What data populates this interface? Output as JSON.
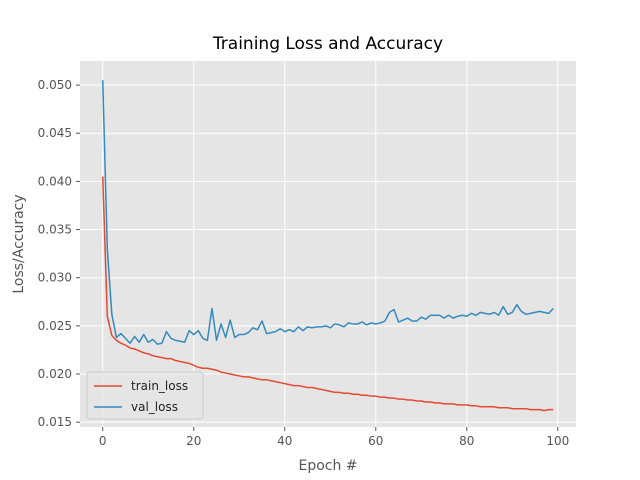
{
  "chart_data": {
    "type": "line",
    "title": "Training Loss and Accuracy",
    "xlabel": "Epoch #",
    "ylabel": "Loss/Accuracy",
    "xlim": [
      -5,
      104
    ],
    "ylim": [
      0.0145,
      0.0525
    ],
    "xticks": [
      0,
      20,
      40,
      60,
      80,
      100
    ],
    "yticks": [
      0.015,
      0.02,
      0.025,
      0.03,
      0.035,
      0.04,
      0.045,
      0.05
    ],
    "ytick_labels": [
      "0.015",
      "0.020",
      "0.025",
      "0.030",
      "0.035",
      "0.040",
      "0.045",
      "0.050"
    ],
    "grid": true,
    "legend_position": "lower-left",
    "series": [
      {
        "name": "train_loss",
        "color": "#E24A33",
        "values": [
          0.0405,
          0.026,
          0.024,
          0.0235,
          0.0232,
          0.023,
          0.0227,
          0.0226,
          0.0224,
          0.0222,
          0.0221,
          0.0219,
          0.0218,
          0.0217,
          0.0216,
          0.0216,
          0.0214,
          0.0213,
          0.0212,
          0.0211,
          0.0209,
          0.0207,
          0.0206,
          0.0206,
          0.0205,
          0.0204,
          0.0202,
          0.0201,
          0.02,
          0.0199,
          0.0198,
          0.0197,
          0.0197,
          0.0196,
          0.0195,
          0.0194,
          0.0194,
          0.0193,
          0.0192,
          0.0191,
          0.019,
          0.0189,
          0.0188,
          0.0188,
          0.0187,
          0.0186,
          0.0186,
          0.0185,
          0.0184,
          0.0183,
          0.0182,
          0.0181,
          0.0181,
          0.018,
          0.018,
          0.0179,
          0.0179,
          0.0178,
          0.0178,
          0.0177,
          0.0177,
          0.0176,
          0.0176,
          0.0175,
          0.0175,
          0.0174,
          0.0174,
          0.0173,
          0.0173,
          0.0172,
          0.0172,
          0.0171,
          0.0171,
          0.017,
          0.017,
          0.0169,
          0.0169,
          0.0169,
          0.0168,
          0.0168,
          0.0168,
          0.0167,
          0.0167,
          0.0166,
          0.0166,
          0.0166,
          0.0166,
          0.0165,
          0.0165,
          0.0165,
          0.0164,
          0.0164,
          0.0164,
          0.0164,
          0.0163,
          0.0163,
          0.0163,
          0.0162,
          0.0163,
          0.0163
        ]
      },
      {
        "name": "val_loss",
        "color": "#348ABD",
        "values": [
          0.0505,
          0.033,
          0.0262,
          0.0238,
          0.0242,
          0.0237,
          0.0232,
          0.0239,
          0.0233,
          0.0241,
          0.0233,
          0.0236,
          0.0231,
          0.0232,
          0.0244,
          0.0237,
          0.0235,
          0.0234,
          0.0233,
          0.0245,
          0.0241,
          0.0245,
          0.0237,
          0.0235,
          0.0268,
          0.0235,
          0.0252,
          0.0238,
          0.0256,
          0.0238,
          0.0241,
          0.0241,
          0.0243,
          0.0248,
          0.0246,
          0.0255,
          0.0242,
          0.0243,
          0.0244,
          0.0247,
          0.0244,
          0.0246,
          0.0244,
          0.0249,
          0.0245,
          0.0249,
          0.0248,
          0.0249,
          0.0249,
          0.025,
          0.0248,
          0.0252,
          0.0251,
          0.0249,
          0.0253,
          0.0252,
          0.0252,
          0.0254,
          0.0251,
          0.0253,
          0.0252,
          0.0253,
          0.0255,
          0.0264,
          0.0267,
          0.0254,
          0.0256,
          0.0258,
          0.0255,
          0.0255,
          0.0259,
          0.0257,
          0.0261,
          0.0261,
          0.0261,
          0.0258,
          0.0261,
          0.0258,
          0.026,
          0.0261,
          0.026,
          0.0263,
          0.0261,
          0.0264,
          0.0263,
          0.0262,
          0.0264,
          0.0261,
          0.027,
          0.0262,
          0.0264,
          0.0272,
          0.0265,
          0.0262,
          0.0263,
          0.0264,
          0.0265,
          0.0264,
          0.0263,
          0.0268
        ]
      }
    ]
  }
}
